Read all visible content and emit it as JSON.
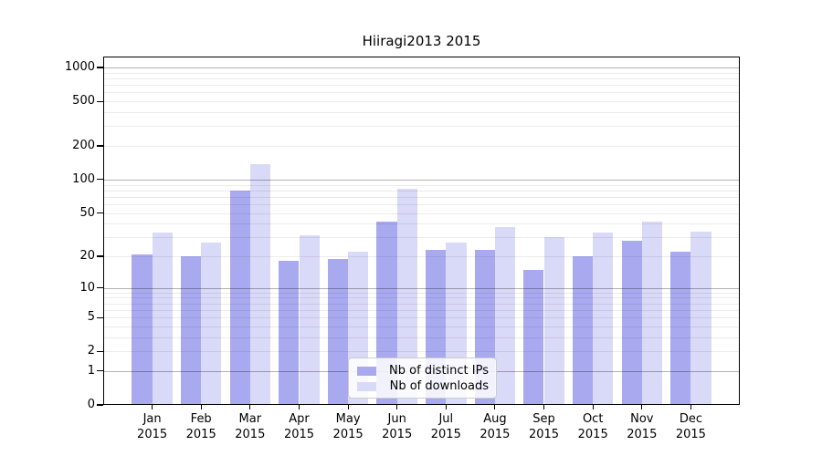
{
  "chart_data": {
    "type": "bar",
    "title": "Hiiragi2013 2015",
    "categories": [
      "Jan",
      "Feb",
      "Mar",
      "Apr",
      "May",
      "Jun",
      "Jul",
      "Aug",
      "Sep",
      "Oct",
      "Nov",
      "Dec"
    ],
    "x_year_label": "2015",
    "series": [
      {
        "name": "Nb of distinct IPs",
        "color": "#a9a9f0",
        "values": [
          21,
          20,
          80,
          18,
          19,
          42,
          23,
          23,
          15,
          20,
          28,
          22
        ]
      },
      {
        "name": "Nb of downloads",
        "color": "#d9d9f8",
        "values": [
          33,
          27,
          138,
          31,
          22,
          83,
          27,
          37,
          30,
          33,
          42,
          34
        ]
      }
    ],
    "y_scale": "log1p",
    "y_ticks": [
      0,
      1,
      2,
      5,
      10,
      20,
      50,
      100,
      200,
      500,
      1000
    ],
    "y_tick_labels": [
      "0",
      "1",
      "2",
      "5",
      "10",
      "20",
      "50",
      "100",
      "200",
      "500",
      "1000"
    ],
    "ylim": [
      0,
      1250
    ],
    "grid": true,
    "legend_position": "lower center",
    "colors": {
      "major_grid": "rgba(0,0,0,0.30)",
      "minor_grid": "rgba(0,0,0,0.08)",
      "axis": "#000000",
      "background": "#ffffff"
    }
  }
}
